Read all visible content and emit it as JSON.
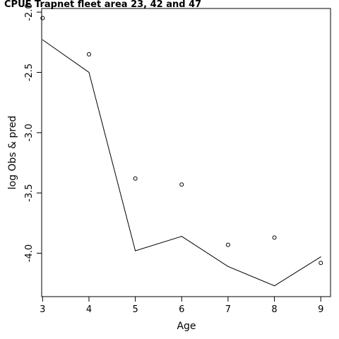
{
  "chart_data": {
    "type": "line",
    "title": "CPUE Trapnet fleet area 23, 42 and 47",
    "xlabel": "Age",
    "ylabel": "log Obs & pred",
    "x": [
      3,
      4,
      5,
      6,
      7,
      8,
      9
    ],
    "x_ticks": [
      "3",
      "4",
      "5",
      "6",
      "7",
      "8",
      "9"
    ],
    "y_ticks": [
      "-2.0",
      "-2.5",
      "-3.0",
      "-3.5",
      "-4.0"
    ],
    "xlim": [
      2.98,
      9.21
    ],
    "ylim": [
      -4.36,
      -1.97
    ],
    "series": [
      {
        "style": "points",
        "values": [
          -2.05,
          -2.35,
          -3.38,
          -3.43,
          -3.93,
          -3.87,
          -4.08
        ]
      },
      {
        "style": "line",
        "values": [
          -2.23,
          -2.5,
          -3.98,
          -3.86,
          -4.11,
          -4.27,
          -4.03
        ]
      }
    ],
    "grid": false,
    "colors": {
      "line": "#000000",
      "points": "#000000",
      "background": "#ffffff"
    }
  }
}
